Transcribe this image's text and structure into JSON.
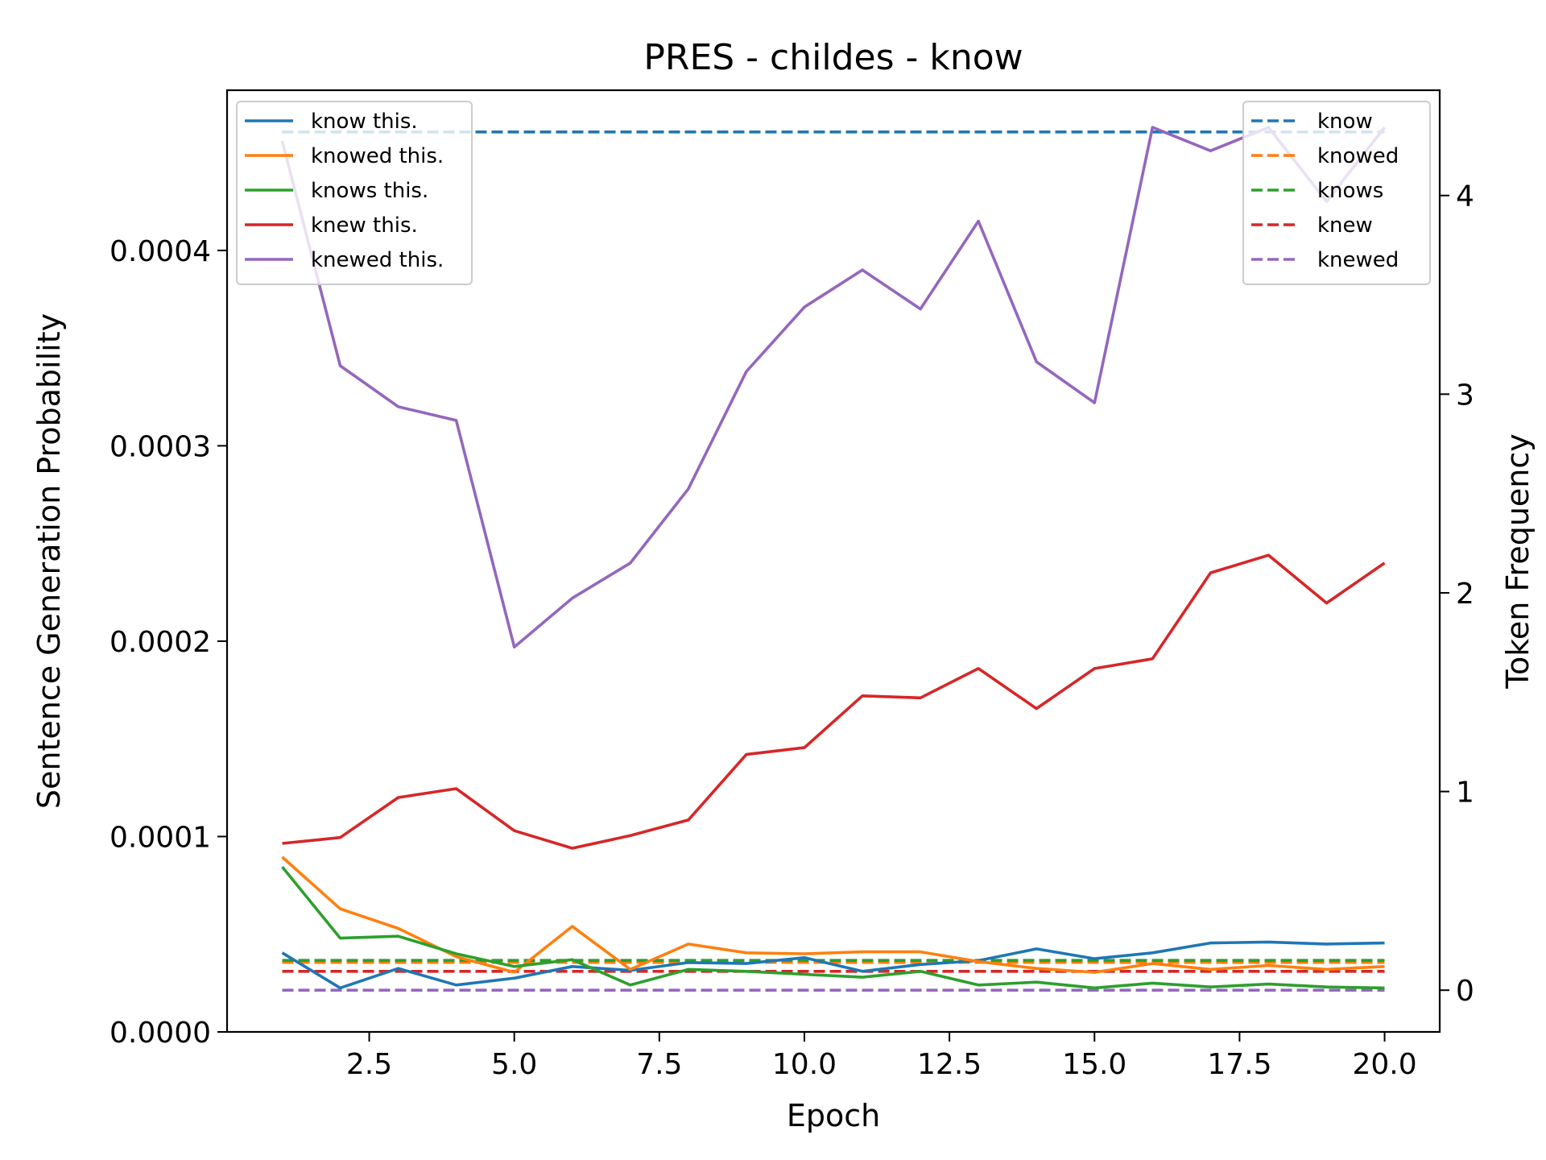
{
  "chart_data": {
    "type": "line",
    "title": "PRES - childes - know",
    "xlabel": "Epoch",
    "ylabel_left": "Sentence Generation Probability",
    "ylabel_right": "Token Frequency",
    "xlim": [
      0.05,
      20.95
    ],
    "ylim_left": [
      0,
      0.000482
    ],
    "ylim_right": [
      -0.21,
      4.53
    ],
    "x_ticks": [
      2.5,
      5.0,
      7.5,
      10.0,
      12.5,
      15.0,
      17.5,
      20.0
    ],
    "x_tick_labels": [
      "2.5",
      "5.0",
      "7.5",
      "10.0",
      "12.5",
      "15.0",
      "17.5",
      "20.0"
    ],
    "y_left_ticks": [
      0.0,
      0.0001,
      0.0002,
      0.0003,
      0.0004
    ],
    "y_left_tick_labels": [
      "0.0000",
      "0.0001",
      "0.0002",
      "0.0003",
      "0.0004"
    ],
    "y_right_ticks": [
      0,
      1,
      2,
      3,
      4
    ],
    "y_right_tick_labels": [
      "0",
      "1",
      "2",
      "3",
      "4"
    ],
    "legend_left_position": "upper-left",
    "legend_right_position": "upper-right",
    "x": [
      1,
      2,
      3,
      4,
      5,
      6,
      7,
      8,
      9,
      10,
      11,
      12,
      13,
      14,
      15,
      16,
      17,
      18,
      19,
      20
    ],
    "series": [
      {
        "name": "know this.",
        "axis": "left",
        "style": "solid",
        "color": "#1f77b4",
        "values": [
          4.05e-05,
          2.25e-05,
          3.25e-05,
          2.4e-05,
          2.75e-05,
          3.35e-05,
          3.15e-05,
          3.55e-05,
          3.5e-05,
          3.8e-05,
          3.1e-05,
          3.45e-05,
          3.65e-05,
          4.25e-05,
          3.75e-05,
          4.05e-05,
          4.55e-05,
          4.6e-05,
          4.5e-05,
          4.55e-05
        ]
      },
      {
        "name": "knowed this.",
        "axis": "left",
        "style": "solid",
        "color": "#ff7f0e",
        "values": [
          8.95e-05,
          6.3e-05,
          5.3e-05,
          3.85e-05,
          3.05e-05,
          5.4e-05,
          3.2e-05,
          4.5e-05,
          4.05e-05,
          4e-05,
          4.1e-05,
          4.1e-05,
          3.6e-05,
          3.25e-05,
          3.05e-05,
          3.5e-05,
          3.2e-05,
          3.4e-05,
          3.2e-05,
          3.35e-05
        ]
      },
      {
        "name": "knows this.",
        "axis": "left",
        "style": "solid",
        "color": "#2ca02c",
        "values": [
          8.45e-05,
          4.8e-05,
          4.9e-05,
          4e-05,
          3.35e-05,
          3.7e-05,
          2.4e-05,
          3.2e-05,
          3.1e-05,
          2.95e-05,
          2.8e-05,
          3.1e-05,
          2.4e-05,
          2.55e-05,
          2.25e-05,
          2.5e-05,
          2.3e-05,
          2.45e-05,
          2.3e-05,
          2.25e-05
        ]
      },
      {
        "name": "knew this.",
        "axis": "left",
        "style": "solid",
        "color": "#d62728",
        "values": [
          9.65e-05,
          9.95e-05,
          0.00012,
          0.0001245,
          0.000103,
          9.4e-05,
          0.0001005,
          0.0001085,
          0.000142,
          0.0001455,
          0.000172,
          0.000171,
          0.000186,
          0.0001655,
          0.000186,
          0.000191,
          0.000235,
          0.000244,
          0.0002195,
          0.00024
        ]
      },
      {
        "name": "knewed this.",
        "axis": "left",
        "style": "solid",
        "color": "#9467bd",
        "values": [
          0.000456,
          0.000341,
          0.00032,
          0.000313,
          0.000197,
          0.000222,
          0.00024,
          0.000278,
          0.000338,
          0.000371,
          0.00039,
          0.00037,
          0.000415,
          0.000343,
          0.000322,
          0.000463,
          0.000451,
          0.000463,
          0.000425,
          0.000463
        ]
      },
      {
        "name": "know",
        "axis": "right",
        "style": "dashed",
        "color": "#1f77b4",
        "values": [
          4.32,
          4.32,
          4.32,
          4.32,
          4.32,
          4.32,
          4.32,
          4.32,
          4.32,
          4.32,
          4.32,
          4.32,
          4.32,
          4.32,
          4.32,
          4.32,
          4.32,
          4.32,
          4.32,
          4.32
        ]
      },
      {
        "name": "knowed",
        "axis": "right",
        "style": "dashed",
        "color": "#ff7f0e",
        "values": [
          0.14,
          0.14,
          0.14,
          0.14,
          0.14,
          0.14,
          0.14,
          0.14,
          0.14,
          0.14,
          0.14,
          0.14,
          0.14,
          0.14,
          0.14,
          0.14,
          0.14,
          0.14,
          0.14,
          0.14
        ]
      },
      {
        "name": "knows",
        "axis": "right",
        "style": "dashed",
        "color": "#2ca02c",
        "values": [
          0.15,
          0.15,
          0.15,
          0.15,
          0.15,
          0.15,
          0.15,
          0.15,
          0.15,
          0.15,
          0.15,
          0.15,
          0.15,
          0.15,
          0.15,
          0.15,
          0.15,
          0.15,
          0.15,
          0.15
        ]
      },
      {
        "name": "knew",
        "axis": "right",
        "style": "dashed",
        "color": "#d62728",
        "values": [
          0.095,
          0.095,
          0.095,
          0.095,
          0.095,
          0.095,
          0.095,
          0.095,
          0.095,
          0.095,
          0.095,
          0.095,
          0.095,
          0.095,
          0.095,
          0.095,
          0.095,
          0.095,
          0.095,
          0.095
        ]
      },
      {
        "name": "knewed",
        "axis": "right",
        "style": "dashed",
        "color": "#9467bd",
        "values": [
          0,
          0,
          0,
          0,
          0,
          0,
          0,
          0,
          0,
          0,
          0,
          0,
          0,
          0,
          0,
          0,
          0,
          0,
          0,
          0
        ]
      }
    ]
  }
}
